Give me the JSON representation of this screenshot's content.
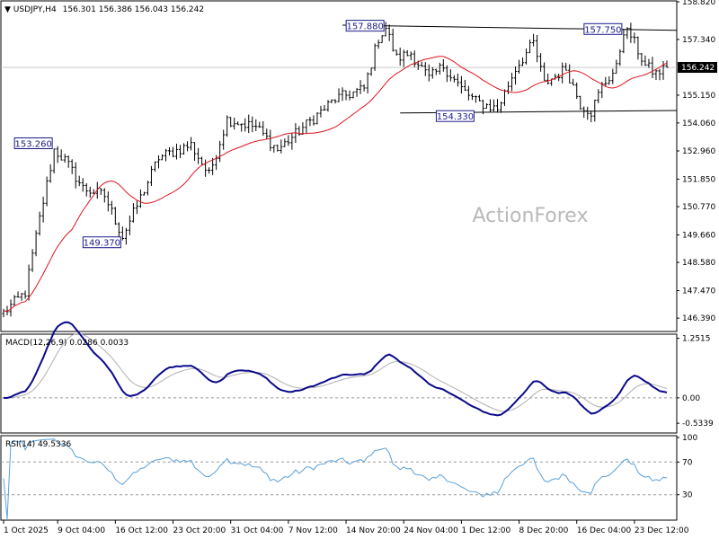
{
  "header": {
    "instrument": "USDJPY,H4",
    "ohlc": "156.301 156.386 156.043 156.242"
  },
  "watermark": "ActionForex",
  "colors": {
    "candles": "#000000",
    "ma": "#e0141e",
    "macd": "#0a0a8c",
    "signal": "#b0b0b0",
    "rsi": "#5aa0d8",
    "grid": "#c8c8c8",
    "price_tag": "#000000"
  },
  "current_price_label": "156.242",
  "panels": {
    "macd_label": "MACD(12,26,9) 0.0286 0.0033",
    "rsi_label": "RSI(14) 49.5336"
  },
  "chart_data": [
    {
      "type": "candlestick",
      "panel": "price",
      "ylim": [
        145.9,
        158.82
      ],
      "y_ticks": [
        "158.820",
        "157.340",
        "156.242",
        "155.150",
        "154.060",
        "152.960",
        "151.850",
        "150.770",
        "149.660",
        "148.580",
        "147.470",
        "146.390"
      ],
      "y_tick_values": [
        158.82,
        157.34,
        156.242,
        155.15,
        154.06,
        152.96,
        151.85,
        150.77,
        149.66,
        148.58,
        147.47,
        146.39
      ],
      "x_ticks": [
        "1 Oct 2025",
        "9 Oct 04:00",
        "16 Oct 12:00",
        "23 Oct 20:00",
        "31 Oct 04:00",
        "7 Nov 12:00",
        "14 Nov 20:00",
        "24 Nov 04:00",
        "1 Dec 12:00",
        "8 Dec 20:00",
        "16 Dec 04:00",
        "23 Dec 12:00"
      ],
      "x_tick_index": [
        0,
        15,
        31,
        47,
        63,
        79,
        95,
        111,
        127,
        143,
        159,
        175
      ],
      "bar_count": 185,
      "close_keypoints": [
        [
          0,
          146.6
        ],
        [
          6,
          147.4
        ],
        [
          10,
          150.3
        ],
        [
          14,
          153.0
        ],
        [
          17,
          152.6
        ],
        [
          22,
          151.5
        ],
        [
          28,
          151.2
        ],
        [
          33,
          149.6
        ],
        [
          37,
          150.8
        ],
        [
          43,
          152.7
        ],
        [
          52,
          153.2
        ],
        [
          57,
          152.0
        ],
        [
          62,
          154.2
        ],
        [
          70,
          153.9
        ],
        [
          76,
          153.0
        ],
        [
          84,
          154.0
        ],
        [
          92,
          155.0
        ],
        [
          100,
          155.4
        ],
        [
          104,
          157.4
        ],
        [
          106,
          157.8
        ],
        [
          109,
          156.6
        ],
        [
          113,
          156.8
        ],
        [
          118,
          155.8
        ],
        [
          122,
          156.3
        ],
        [
          127,
          155.4
        ],
        [
          131,
          154.9
        ],
        [
          137,
          154.6
        ],
        [
          142,
          156.2
        ],
        [
          147,
          157.2
        ],
        [
          150,
          155.6
        ],
        [
          156,
          156.2
        ],
        [
          160,
          154.8
        ],
        [
          163,
          154.5
        ],
        [
          166,
          155.5
        ],
        [
          170,
          156.2
        ],
        [
          172,
          157.7
        ],
        [
          174,
          157.5
        ],
        [
          178,
          156.3
        ],
        [
          181,
          156.0
        ],
        [
          184,
          156.24
        ]
      ],
      "annotations": [
        {
          "text": "157.880",
          "bar": 106,
          "price": 157.88
        },
        {
          "text": "157.750",
          "bar": 172,
          "price": 157.75
        },
        {
          "text": "153.260",
          "bar": 14,
          "price": 153.26
        },
        {
          "text": "154.330",
          "bar": 131,
          "price": 154.33
        },
        {
          "text": "149.370",
          "bar": 33,
          "price": 149.37
        }
      ],
      "trendlines": [
        {
          "from": [
            94,
            157.9
          ],
          "to": [
            184,
            157.7
          ]
        },
        {
          "from": [
            110,
            154.45
          ],
          "to": [
            184,
            154.55
          ]
        }
      ],
      "moving_average_period": 20
    },
    {
      "type": "line",
      "panel": "macd",
      "name": "MACD(12,26,9)",
      "ylim": [
        -0.72,
        1.32
      ],
      "y_ticks": [
        "1.2515",
        "0.00",
        "-0.5339"
      ],
      "y_tick_values": [
        1.2515,
        0.0,
        -0.5339
      ]
    },
    {
      "type": "line",
      "panel": "rsi",
      "name": "RSI(14)",
      "ylim": [
        0,
        100
      ],
      "y_ticks": [
        "100",
        "70",
        "30"
      ],
      "y_tick_values": [
        100,
        70,
        30
      ]
    }
  ]
}
